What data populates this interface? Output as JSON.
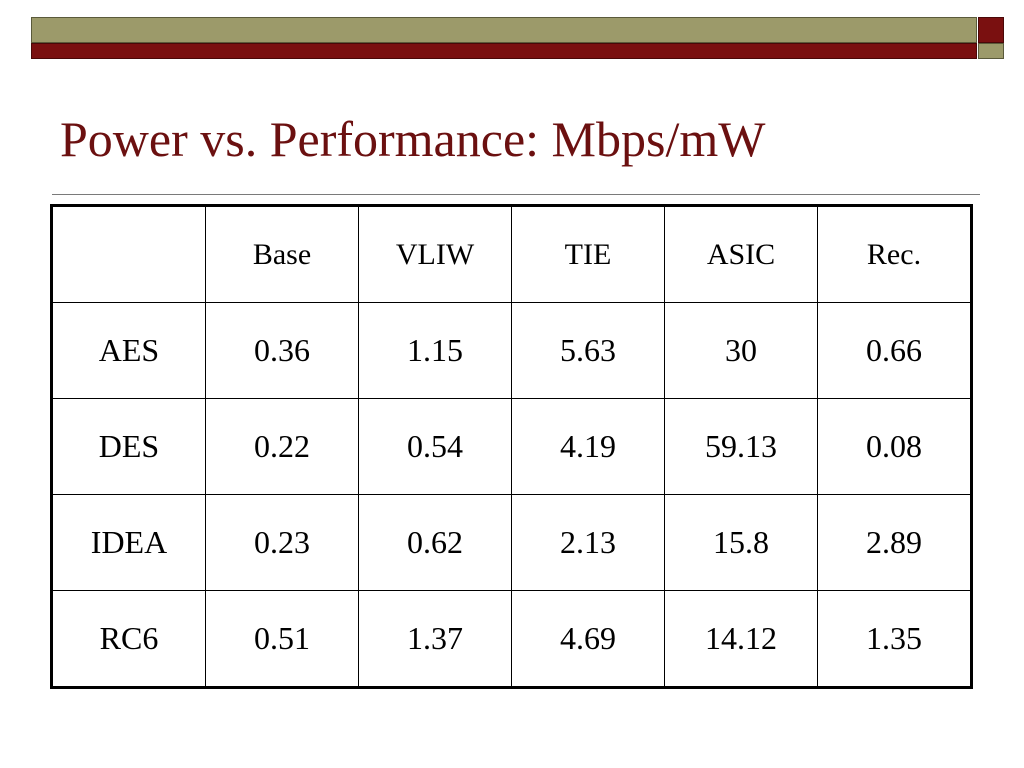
{
  "title": "Power vs. Performance: Mbps/mW",
  "colors": {
    "olive": "#9c9a6a",
    "maroon": "#7a1010",
    "title": "#6b1010"
  },
  "table": {
    "headers": [
      "",
      "Base",
      "VLIW",
      "TIE",
      "ASIC",
      "Rec."
    ],
    "rows": [
      [
        "AES",
        "0.36",
        "1.15",
        "5.63",
        "30",
        "0.66"
      ],
      [
        "DES",
        "0.22",
        "0.54",
        "4.19",
        "59.13",
        "0.08"
      ],
      [
        "IDEA",
        "0.23",
        "0.62",
        "2.13",
        "15.8",
        "2.89"
      ],
      [
        "RC6",
        "0.51",
        "1.37",
        "4.69",
        "14.12",
        "1.35"
      ]
    ]
  }
}
